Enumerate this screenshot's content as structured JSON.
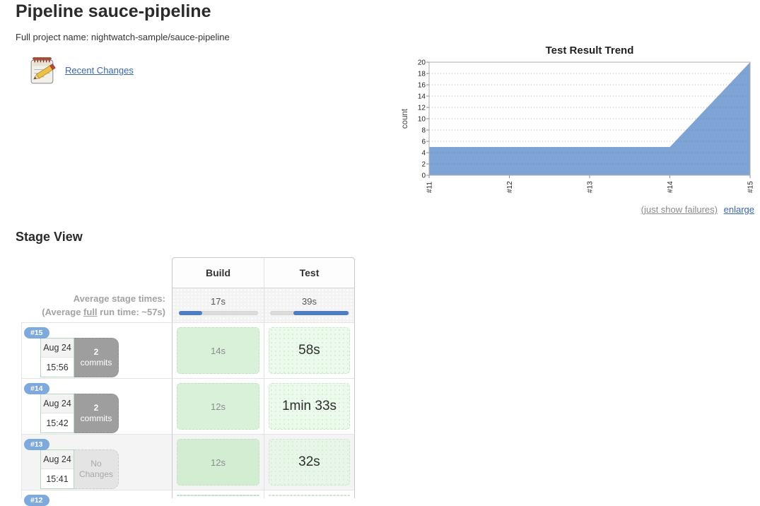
{
  "page": {
    "title": "Pipeline sauce-pipeline",
    "subtitle": "Full project name: nightwatch-sample/sauce-pipeline",
    "recent_changes": "Recent Changes",
    "icons": {
      "recent_changes": "notepad-pencil-icon"
    }
  },
  "chart_data": {
    "type": "area",
    "title": "Test Result Trend",
    "ylabel": "count",
    "xlabel": "",
    "categories": [
      "#11",
      "#12",
      "#13",
      "#14",
      "#15"
    ],
    "series": [
      {
        "name": "count",
        "values": [
          5,
          5,
          5,
          5,
          20
        ]
      }
    ],
    "ylim": [
      0,
      20
    ],
    "ytick_step": 2,
    "grid": true,
    "legend": "none",
    "area_color": "#7ea4d6",
    "links": [
      "(just show failures)",
      "enlarge"
    ]
  },
  "stage_view": {
    "heading": "Stage View",
    "columns": [
      "Build",
      "Test"
    ],
    "averages": {
      "label_line1": "Average stage times:",
      "line2_prefix": "(Average ",
      "line2_underline": "full",
      "line2_suffix": " run time: ~57s)",
      "stage_times": [
        "17s",
        "39s"
      ],
      "bar_fills": [
        {
          "start": 0,
          "end": 30
        },
        {
          "start": 30,
          "end": 100
        }
      ]
    },
    "rows": [
      {
        "id": "#15",
        "date": "Aug 24",
        "time": "15:56",
        "changes_lines": [
          "2",
          "commits"
        ],
        "no_changes": false,
        "stage_times": [
          "14s",
          "58s"
        ],
        "gray": false,
        "partial": false
      },
      {
        "id": "#14",
        "date": "Aug 24",
        "time": "15:42",
        "changes_lines": [
          "2",
          "commits"
        ],
        "no_changes": false,
        "stage_times": [
          "12s",
          "1min 33s"
        ],
        "gray": false,
        "partial": false
      },
      {
        "id": "#13",
        "date": "Aug 24",
        "time": "15:41",
        "changes_lines": [
          "No",
          "Changes"
        ],
        "no_changes": true,
        "stage_times": [
          "12s",
          "32s"
        ],
        "gray": true,
        "partial": false
      },
      {
        "id": "#12",
        "gray": false,
        "partial": true
      }
    ],
    "colors": {
      "accent_blue": "#4f7dc2",
      "badge_blue": "#7ea9dd",
      "stage_green": "#d9f1d9",
      "stage_green_light": "#ecfaec"
    }
  }
}
